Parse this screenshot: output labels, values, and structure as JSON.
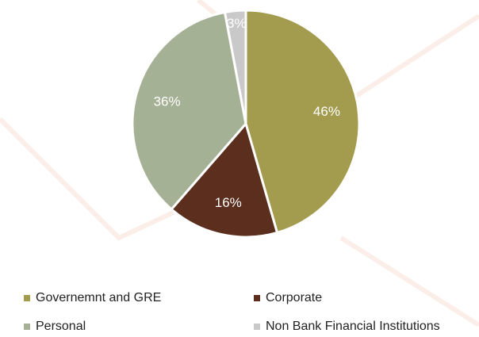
{
  "chart_data": {
    "type": "pie",
    "categories": [
      "Governemnt and GRE",
      "Corporate",
      "Personal",
      "Non Bank Financial Institutions"
    ],
    "values": [
      46,
      16,
      36,
      3
    ],
    "value_labels": [
      "46%",
      "16%",
      "36%",
      "3%"
    ],
    "colors": [
      "#a39b4e",
      "#5b2e1d",
      "#a4b194",
      "#c9c9c9"
    ]
  }
}
